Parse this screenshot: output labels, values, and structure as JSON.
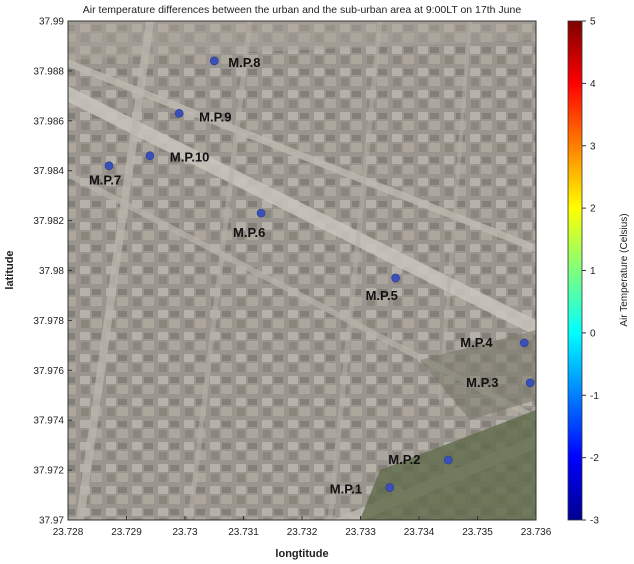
{
  "chart_data": {
    "type": "scatter",
    "title": "Air temperature differences between the urban and the sub-urban area at 9:00LT on 17th June",
    "xlabel": "longtitude",
    "ylabel": "latitude",
    "xlim": [
      23.728,
      23.736
    ],
    "ylim": [
      37.97,
      37.99
    ],
    "xticks": [
      "23.728",
      "23.729",
      "23.73",
      "23.731",
      "23.732",
      "23.733",
      "23.734",
      "23.735",
      "23.736"
    ],
    "yticks": [
      "37.97",
      "37.972",
      "37.974",
      "37.976",
      "37.978",
      "37.98",
      "37.982",
      "37.984",
      "37.986",
      "37.988",
      "37.99"
    ],
    "background": "satellite map imagery",
    "colorbar": {
      "label": "Air Temperature (Celsius)",
      "min": -3,
      "max": 5,
      "ticks": [
        "5",
        "4",
        "3",
        "2",
        "1",
        "0",
        "-1",
        "-2",
        "-3"
      ],
      "colormap": "jet"
    },
    "points": [
      {
        "label": "M.P.1",
        "x": 23.7335,
        "y": 37.9713
      },
      {
        "label": "M.P.2",
        "x": 23.7345,
        "y": 37.9724
      },
      {
        "label": "M.P.3",
        "x": 23.7359,
        "y": 37.9755
      },
      {
        "label": "M.P.4",
        "x": 23.7358,
        "y": 37.9771
      },
      {
        "label": "M.P.5",
        "x": 23.7336,
        "y": 37.9797
      },
      {
        "label": "M.P.6",
        "x": 23.7313,
        "y": 37.9823
      },
      {
        "label": "M.P.7",
        "x": 23.7287,
        "y": 37.9842
      },
      {
        "label": "M.P.8",
        "x": 23.7305,
        "y": 37.9884
      },
      {
        "label": "M.P.9",
        "x": 23.7299,
        "y": 37.9863
      },
      {
        "label": "M.P.10",
        "x": 23.7294,
        "y": 37.9846
      }
    ],
    "marker_color": "#3a4fb8",
    "grid": false,
    "legend": false
  }
}
